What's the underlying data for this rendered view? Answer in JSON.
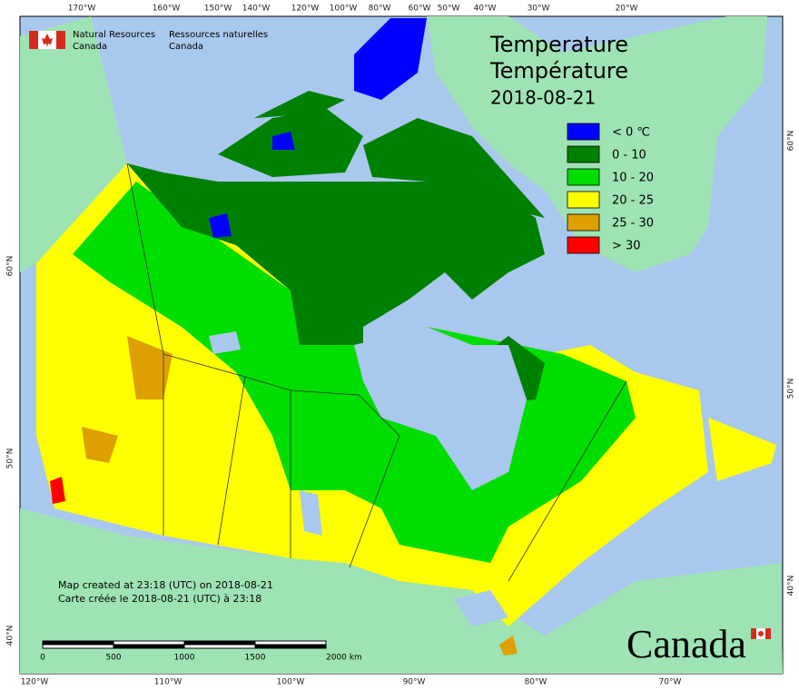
{
  "header": {
    "en_line1": "Natural Resources",
    "en_line2": "Canada",
    "fr_line1": "Ressources naturelles",
    "fr_line2": "Canada"
  },
  "title": {
    "line1": "Temperature",
    "line2": "Température",
    "date": "2018-08-21"
  },
  "legend": [
    {
      "label": "< 0 ℃",
      "color": "#0000ff"
    },
    {
      "label": "0 - 10",
      "color": "#008000"
    },
    {
      "label": "10 - 20",
      "color": "#00dd00"
    },
    {
      "label": "20 - 25",
      "color": "#ffff00"
    },
    {
      "label": "25 - 30",
      "color": "#dda000"
    },
    {
      "label": "> 30",
      "color": "#ff0000"
    }
  ],
  "credits": {
    "line1": "Map created at 23:18 (UTC) on 2018-08-21",
    "line2": "Carte créée le 2018-08-21 (UTC) à 23:18"
  },
  "scale_bar": {
    "labels": [
      "0",
      "500",
      "1000",
      "1500",
      "2000 km"
    ]
  },
  "graticule": {
    "top": [
      "170°W",
      "160°W",
      "150°W",
      "140°W",
      "120°W",
      "100°W",
      "80°W",
      "60°W",
      "50°W",
      "40°W",
      "30°W",
      "20°W"
    ],
    "bottom": [
      "120°W",
      "110°W",
      "100°W",
      "90°W",
      "80°W",
      "70°W"
    ],
    "left": [
      "60°N",
      "50°N",
      "40°N"
    ],
    "right": [
      "60°N",
      "50°N",
      "40°N"
    ]
  },
  "wordmark": "Canada"
}
